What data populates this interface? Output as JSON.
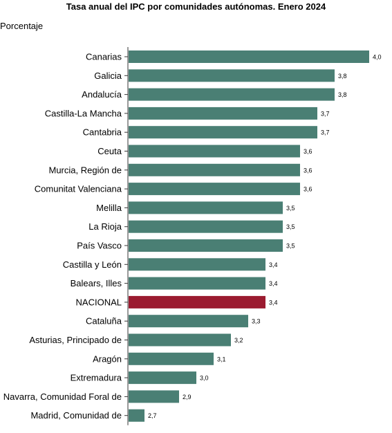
{
  "chart_data": {
    "type": "bar",
    "orientation": "horizontal",
    "title": "Tasa anual del IPC por comunidades autónomas. Enero 2024",
    "ylabel": "Porcentaje",
    "categories": [
      "Canarias",
      "Galicia",
      "Andalucía",
      "Castilla-La Mancha",
      "Cantabria",
      "Ceuta",
      "Murcia, Región de",
      "Comunitat Valenciana",
      "Melilla",
      "La Rioja",
      "País Vasco",
      "Castilla y León",
      "Balears, Illes",
      "NACIONAL",
      "Cataluña",
      "Asturias, Principado de",
      "Aragón",
      "Extremadura",
      "Navarra, Comunidad Foral de",
      "Madrid, Comunidad de"
    ],
    "values": [
      4.0,
      3.8,
      3.8,
      3.7,
      3.7,
      3.6,
      3.6,
      3.6,
      3.5,
      3.5,
      3.5,
      3.4,
      3.4,
      3.4,
      3.3,
      3.2,
      3.1,
      3.0,
      2.9,
      2.7
    ],
    "value_labels": [
      "4,0",
      "3,8",
      "3,8",
      "3,7",
      "3,7",
      "3,6",
      "3,6",
      "3,6",
      "3,5",
      "3,5",
      "3,5",
      "3,4",
      "3,4",
      "3,4",
      "3,3",
      "3,2",
      "3,1",
      "3,0",
      "2,9",
      "2,7"
    ],
    "highlight": "NACIONAL",
    "colors": {
      "bar": "#4a7f74",
      "highlight": "#9b1b30",
      "axis": "#333333"
    },
    "grid": false,
    "legend": "none"
  }
}
